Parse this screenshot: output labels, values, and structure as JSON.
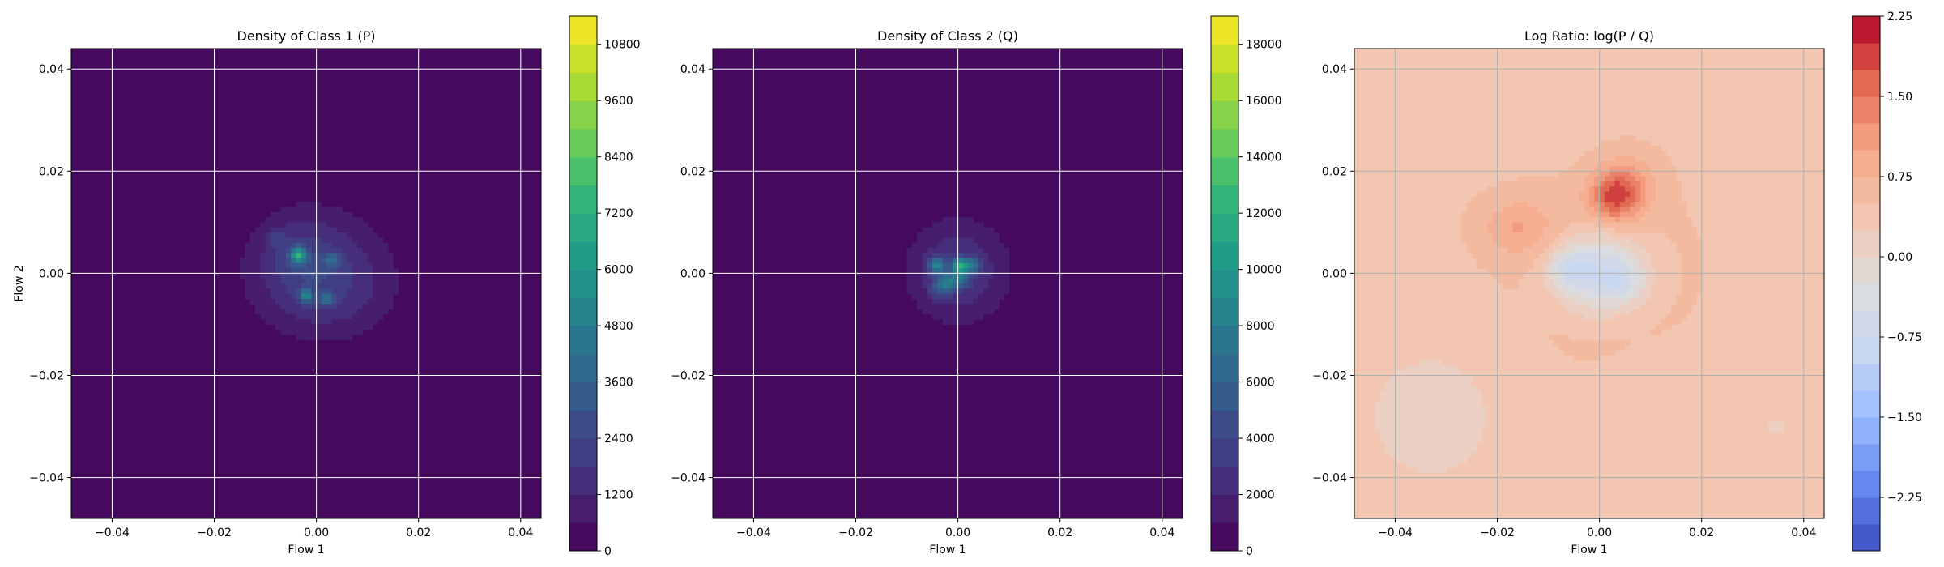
{
  "figure": {
    "colors": {
      "viridis": [
        "#440154",
        "#482878",
        "#3e4989",
        "#31688e",
        "#26828e",
        "#1f9e89",
        "#35b779",
        "#6ece58",
        "#b5de2b",
        "#fde725"
      ],
      "coolwarm": [
        "#3b4cc0",
        "#6788ee",
        "#9abbff",
        "#c9d7f0",
        "#dddddd",
        "#f2c6b0",
        "#f7a889",
        "#e26952",
        "#b40426"
      ],
      "grid": "#ffffff",
      "grid_log": "#b0b0b0"
    }
  },
  "chart_data": [
    {
      "type": "heatmap",
      "title": "Density of Class 1 (P)",
      "xlabel": "Flow 1",
      "ylabel": "Flow 2",
      "xlim": [
        -0.048,
        0.044
      ],
      "ylim": [
        -0.048,
        0.044
      ],
      "xticks": [
        -0.04,
        -0.02,
        0.0,
        0.02,
        0.04
      ],
      "xtick_labels": [
        "−0.04",
        "−0.02",
        "0.00",
        "0.02",
        "0.04"
      ],
      "yticks": [
        -0.04,
        -0.02,
        0.0,
        0.02,
        0.04
      ],
      "ytick_labels": [
        "−0.04",
        "−0.02",
        "0.00",
        "0.02",
        "0.04"
      ],
      "grid": true,
      "colormap": "viridis",
      "colorbar": {
        "min": 0,
        "max": 11400,
        "ticks": [
          0,
          1200,
          2400,
          3600,
          4800,
          6000,
          7200,
          8400,
          9600,
          10800
        ],
        "tick_labels": [
          "0",
          "1200",
          "2400",
          "3600",
          "4800",
          "6000",
          "7200",
          "8400",
          "9600",
          "10800"
        ],
        "levels": 19
      },
      "background_value": 0,
      "blobs": [
        {
          "x": 0.0,
          "y": 0.0005,
          "sx": 0.0095,
          "sy": 0.0085,
          "v": 1700
        },
        {
          "x": 0.004,
          "y": -0.004,
          "sx": 0.008,
          "sy": 0.006,
          "v": 600
        },
        {
          "x": -0.004,
          "y": 0.004,
          "sx": 0.005,
          "sy": 0.005,
          "v": 700
        },
        {
          "x": -0.0035,
          "y": 0.0035,
          "sx": 0.0011,
          "sy": 0.0011,
          "v": 5200
        },
        {
          "x": -0.002,
          "y": -0.0045,
          "sx": 0.0009,
          "sy": 0.0009,
          "v": 3600
        },
        {
          "x": 0.003,
          "y": 0.0025,
          "sx": 0.0013,
          "sy": 0.0011,
          "v": 1800
        },
        {
          "x": 0.002,
          "y": -0.005,
          "sx": 0.0009,
          "sy": 0.0009,
          "v": 2600
        },
        {
          "x": -0.008,
          "y": 0.007,
          "sx": 0.0012,
          "sy": 0.0012,
          "v": 900
        }
      ]
    },
    {
      "type": "heatmap",
      "title": "Density of Class 2 (Q)",
      "xlabel": "Flow 1",
      "ylabel": "",
      "xlim": [
        -0.048,
        0.044
      ],
      "ylim": [
        -0.048,
        0.044
      ],
      "xticks": [
        -0.04,
        -0.02,
        0.0,
        0.02,
        0.04
      ],
      "xtick_labels": [
        "−0.04",
        "−0.02",
        "0.00",
        "0.02",
        "0.04"
      ],
      "yticks": [
        -0.04,
        -0.02,
        0.0,
        0.02,
        0.04
      ],
      "ytick_labels": [
        "−0.04",
        "−0.02",
        "0.00",
        "0.02",
        "0.04"
      ],
      "grid": true,
      "colormap": "viridis",
      "colorbar": {
        "min": 0,
        "max": 19000,
        "ticks": [
          0,
          2000,
          4000,
          6000,
          8000,
          10000,
          12000,
          14000,
          16000,
          18000
        ],
        "tick_labels": [
          "0",
          "2000",
          "4000",
          "6000",
          "8000",
          "10000",
          "12000",
          "14000",
          "16000",
          "18000"
        ],
        "levels": 19
      },
      "background_value": 0,
      "blobs": [
        {
          "x": 0.0,
          "y": 0.0005,
          "sx": 0.0068,
          "sy": 0.0068,
          "v": 3200
        },
        {
          "x": -0.004,
          "y": 0.0015,
          "sx": 0.0012,
          "sy": 0.0012,
          "v": 6000
        },
        {
          "x": 0.0005,
          "y": 0.0015,
          "sx": 0.001,
          "sy": 0.001,
          "v": 9000
        },
        {
          "x": -0.002,
          "y": -0.002,
          "sx": 0.0012,
          "sy": 0.0012,
          "v": 5000
        },
        {
          "x": 0.003,
          "y": 0.0015,
          "sx": 0.0011,
          "sy": 0.0011,
          "v": 4500
        },
        {
          "x": 0.0005,
          "y": -0.001,
          "sx": 0.0012,
          "sy": 0.0012,
          "v": 4000
        },
        {
          "x": -0.004,
          "y": -0.003,
          "sx": 0.0012,
          "sy": 0.0012,
          "v": 2600
        }
      ]
    },
    {
      "type": "heatmap",
      "title": "Log Ratio: log(P / Q)",
      "xlabel": "Flow 1",
      "ylabel": "",
      "xlim": [
        -0.048,
        0.044
      ],
      "ylim": [
        -0.048,
        0.044
      ],
      "xticks": [
        -0.04,
        -0.02,
        0.0,
        0.02,
        0.04
      ],
      "xtick_labels": [
        "−0.04",
        "−0.02",
        "0.00",
        "0.02",
        "0.04"
      ],
      "yticks": [
        -0.04,
        -0.02,
        0.0,
        0.02,
        0.04
      ],
      "ytick_labels": [
        "−0.04",
        "−0.02",
        "0.00",
        "0.02",
        "0.04"
      ],
      "grid": true,
      "colormap": "coolwarm",
      "colorbar": {
        "min": -2.75,
        "max": 2.25,
        "ticks": [
          -2.25,
          -1.5,
          -0.75,
          0.0,
          0.75,
          1.5,
          2.25
        ],
        "tick_labels": [
          "−2.25",
          "−1.50",
          "−0.75",
          "0.00",
          "0.75",
          "1.50",
          "2.25"
        ],
        "levels": 20
      },
      "background_value": 0.45,
      "blobs": [
        {
          "x": 0.0,
          "y": 0.0,
          "sx": 0.011,
          "sy": 0.01,
          "v": 0.35
        },
        {
          "x": 0.003,
          "y": 0.015,
          "sx": 0.0035,
          "sy": 0.0035,
          "v": 1.2
        },
        {
          "x": -0.016,
          "y": 0.009,
          "sx": 0.005,
          "sy": 0.004,
          "v": 0.5
        },
        {
          "x": 0.006,
          "y": 0.018,
          "sx": 0.004,
          "sy": 0.004,
          "v": 0.4
        },
        {
          "x": 0.0,
          "y": 0.0,
          "sx": 0.0065,
          "sy": 0.0055,
          "v": -1.55
        },
        {
          "x": -0.006,
          "y": 0.001,
          "sx": 0.0025,
          "sy": 0.0025,
          "v": -0.6
        },
        {
          "x": 0.005,
          "y": -0.002,
          "sx": 0.0025,
          "sy": 0.0025,
          "v": -0.4
        },
        {
          "x": 0.012,
          "y": -0.025,
          "sx": 0.008,
          "sy": 0.006,
          "v": -0.15
        },
        {
          "x": -0.033,
          "y": -0.028,
          "sx": 0.012,
          "sy": 0.012,
          "v": -0.3
        },
        {
          "x": 0.035,
          "y": -0.03,
          "sx": 0.012,
          "sy": 0.01,
          "v": -0.2
        }
      ]
    }
  ]
}
